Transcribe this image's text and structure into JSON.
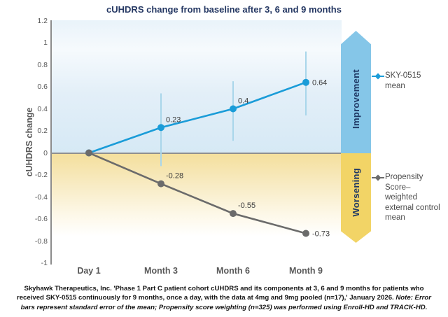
{
  "title": "cUHDRS change from baseline after 3, 6 and 9 months",
  "colors": {
    "sky_series": "#1A9CD8",
    "error_bar": "#A9D6EA",
    "control_series": "#6B6B6B",
    "improvement_arrow": "#85C6E8",
    "worsening_arrow": "#F2D466",
    "title_navy": "#253863",
    "axis_gray": "#595959"
  },
  "chart_data": {
    "type": "line",
    "title": "cUHDRS change from baseline after 3, 6 and 9 months",
    "xlabel": "",
    "ylabel": "cUHDRS change",
    "categories": [
      "Day 1",
      "Month 3",
      "Month 6",
      "Month 9"
    ],
    "ylim": [
      -1,
      1.2
    ],
    "yticks": [
      1.2,
      1,
      0.8,
      0.6,
      0.4,
      0.2,
      0,
      -0.2,
      -0.4,
      -0.6,
      -0.8,
      -1
    ],
    "grid": false,
    "legend_position": "right",
    "series": [
      {
        "name": "SKY-0515 mean",
        "color": "#1A9CD8",
        "values": [
          0,
          0.23,
          0.4,
          0.64
        ],
        "point_labels": [
          "",
          "0.23",
          "0.4",
          "0.64"
        ],
        "error_high": [
          null,
          0.54,
          0.65,
          0.92
        ],
        "error_low": [
          null,
          -0.12,
          0.11,
          0.34
        ],
        "error_color": "#A9D6EA"
      },
      {
        "name": "Propensity Score–weighted external control mean",
        "color": "#6B6B6B",
        "values": [
          0,
          -0.28,
          -0.55,
          -0.73
        ],
        "point_labels": [
          "",
          "-0.28",
          "-0.55",
          "-0.73"
        ]
      }
    ],
    "annotations": [
      "Improvement",
      "Worsening"
    ]
  },
  "axis": {
    "y_label": "cUHDRS change"
  },
  "arrows": {
    "up_label": "Improvement",
    "down_label": "Worsening"
  },
  "legend": {
    "sky_label": "SKY-0515 mean",
    "control_label": "Propensity Score–weighted external control mean"
  },
  "footer": {
    "main": "Skyhawk Therapeutics, Inc. 'Phase 1 Part C patient cohort cUHDRS and its components at 3, 6 and 9 months for patients who received SKY-0515 continuously for 9 months, once a day, with the data at 4mg and 9mg pooled (n=17),' January 2026. ",
    "note": "Note: Error bars represent standard error of the mean; Propensity score weighting (n=325) was performed using Enroll-HD and TRACK-HD."
  }
}
